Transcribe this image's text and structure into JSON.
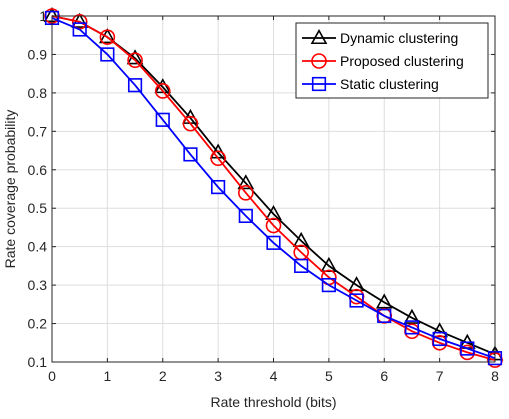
{
  "chart_data": {
    "type": "line",
    "xlabel": "Rate threshold (bits)",
    "ylabel": "Rate coverage probability",
    "xlim": [
      0,
      8
    ],
    "ylim": [
      0.1,
      1.0
    ],
    "xticks": [
      0,
      1,
      2,
      3,
      4,
      5,
      6,
      7,
      8
    ],
    "yticks": [
      0.1,
      0.2,
      0.3,
      0.4,
      0.5,
      0.6,
      0.7,
      0.8,
      0.9,
      1
    ],
    "xtick_labels": [
      "0",
      "1",
      "2",
      "3",
      "4",
      "5",
      "6",
      "7",
      "8"
    ],
    "ytick_labels": [
      "0.1",
      "0.2",
      "0.3",
      "0.4",
      "0.5",
      "0.6",
      "0.7",
      "0.8",
      "0.9",
      "1"
    ],
    "grid": true,
    "legend_position": "top-right",
    "x": [
      0,
      0.5,
      1,
      1.5,
      2,
      2.5,
      3,
      3.5,
      4,
      4.5,
      5,
      5.5,
      6,
      6.5,
      7,
      7.5,
      8
    ],
    "series": [
      {
        "name": "Dynamic clustering",
        "color": "#000000",
        "marker": "triangle",
        "values": [
          1.0,
          0.985,
          0.945,
          0.89,
          0.815,
          0.735,
          0.645,
          0.565,
          0.485,
          0.415,
          0.35,
          0.3,
          0.255,
          0.215,
          0.18,
          0.15,
          0.12
        ]
      },
      {
        "name": "Proposed clustering",
        "color": "#ff0000",
        "marker": "circle",
        "values": [
          1.0,
          0.985,
          0.945,
          0.885,
          0.805,
          0.72,
          0.63,
          0.54,
          0.455,
          0.385,
          0.32,
          0.27,
          0.22,
          0.18,
          0.15,
          0.125,
          0.105
        ]
      },
      {
        "name": "Static clustering",
        "color": "#0000ff",
        "marker": "square",
        "values": [
          0.995,
          0.965,
          0.9,
          0.82,
          0.73,
          0.64,
          0.555,
          0.48,
          0.41,
          0.35,
          0.3,
          0.26,
          0.22,
          0.19,
          0.16,
          0.135,
          0.11
        ]
      }
    ]
  }
}
